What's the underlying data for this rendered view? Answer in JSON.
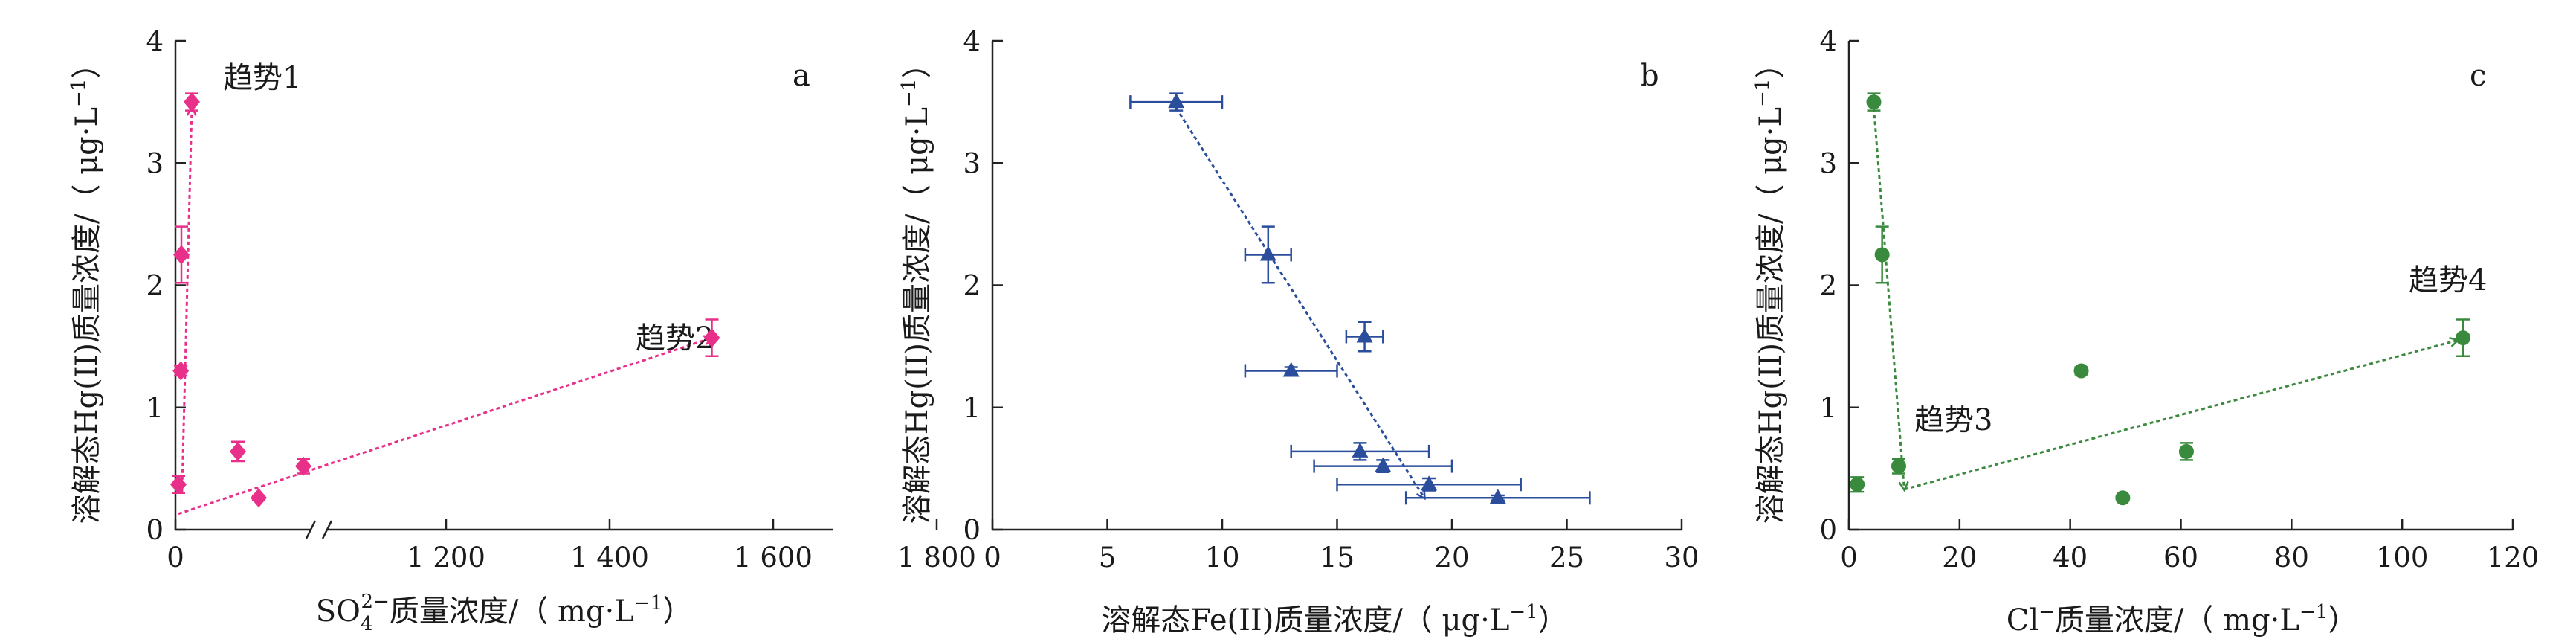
{
  "chart_data": [
    {
      "type": "scatter",
      "panel_label": "a",
      "xlabel_parts": [
        "SO",
        "4",
        "2−",
        "质量浓度/（ mg·L",
        "−1",
        "）"
      ],
      "ylabel_parts": [
        "溶解态Hg(II)质量浓度/（ μg·L",
        "−1",
        "）"
      ],
      "x_break": true,
      "ylim": [
        0,
        4
      ],
      "y_ticks": [
        "0",
        "1",
        "2",
        "3",
        "4"
      ],
      "x_ticks": [
        {
          "label": "0",
          "value": 0
        },
        {
          "label": "1 200",
          "value": 1200
        },
        {
          "label": "1 400",
          "value": 1400
        },
        {
          "label": "1 600",
          "value": 1600
        },
        {
          "label": "1 800",
          "value": 1800
        }
      ],
      "series": [
        {
          "marker": "diamond",
          "color": "#e8308a",
          "points": [
            {
              "x": 10,
              "y": 0.37,
              "yerr": 0.07
            },
            {
              "x": 18,
              "y": 1.3,
              "yerr": 0.04
            },
            {
              "x": 20,
              "y": 2.25,
              "yerr": 0.23
            },
            {
              "x": 55,
              "y": 3.5,
              "yerr": 0.07
            },
            {
              "x": 210,
              "y": 0.64,
              "yerr": 0.08
            },
            {
              "x": 280,
              "y": 0.26,
              "yerr": 0.02
            },
            {
              "x": 430,
              "y": 0.52,
              "yerr": 0.06
            },
            {
              "x": 1525,
              "y": 1.57,
              "yerr": 0.15
            }
          ]
        }
      ],
      "trend_lines": [
        {
          "label": "趋势1",
          "from": [
            22,
            0.3
          ],
          "to": [
            55,
            3.45
          ]
        },
        {
          "label": "趋势2",
          "from": [
            10,
            0.13
          ],
          "to": [
            1525,
            1.57
          ]
        }
      ]
    },
    {
      "type": "scatter",
      "panel_label": "b",
      "xlabel_parts": [
        "溶解态Fe(II)质量浓度/（ μg·L",
        "−1",
        "）"
      ],
      "ylabel_parts": [
        "溶解态Hg(II)质量浓度/（ μg·L",
        "−1",
        "）"
      ],
      "xlim": [
        0,
        30
      ],
      "ylim": [
        0,
        4
      ],
      "x_ticks": [
        "0",
        "5",
        "10",
        "15",
        "20",
        "25",
        "30"
      ],
      "y_ticks": [
        "0",
        "1",
        "2",
        "3",
        "4"
      ],
      "series": [
        {
          "marker": "triangle",
          "color": "#2a4d9c",
          "points": [
            {
              "x": 8,
              "y": 3.5,
              "xerr": 2,
              "yerr": 0.07
            },
            {
              "x": 12,
              "y": 2.25,
              "xerr": 1,
              "yerr": 0.23
            },
            {
              "x": 16.2,
              "y": 1.58,
              "xerr": 0.8,
              "yerr": 0.12
            },
            {
              "x": 13,
              "y": 1.3,
              "xerr": 2,
              "yerr": 0.03
            },
            {
              "x": 16,
              "y": 0.64,
              "xerr": 3,
              "yerr": 0.07
            },
            {
              "x": 17,
              "y": 0.52,
              "xerr": 3,
              "yerr": 0.05
            },
            {
              "x": 19,
              "y": 0.37,
              "xerr": 4,
              "yerr": 0.05
            },
            {
              "x": 22,
              "y": 0.26,
              "xerr": 4,
              "yerr": 0.02
            }
          ]
        }
      ],
      "trend_lines": [
        {
          "label": "",
          "from": [
            8,
            3.45
          ],
          "to": [
            18.8,
            0.26
          ]
        }
      ]
    },
    {
      "type": "scatter",
      "panel_label": "c",
      "xlabel_parts": [
        "Cl",
        "−",
        "质量浓度/（ mg·L",
        "−1",
        "）"
      ],
      "ylabel_parts": [
        "溶解态Hg(II)质量浓度/（ μg·L",
        "−1",
        "）"
      ],
      "xlim": [
        0,
        120
      ],
      "ylim": [
        0,
        4
      ],
      "x_ticks": [
        "0",
        "20",
        "40",
        "60",
        "80",
        "100",
        "120"
      ],
      "y_ticks": [
        "0",
        "1",
        "2",
        "3",
        "4"
      ],
      "series": [
        {
          "marker": "circle",
          "color": "#3a8a3e",
          "points": [
            {
              "x": 1.5,
              "y": 0.37,
              "yerr": 0.06
            },
            {
              "x": 4.5,
              "y": 3.5,
              "yerr": 0.07
            },
            {
              "x": 6,
              "y": 2.25,
              "yerr": 0.23
            },
            {
              "x": 9,
              "y": 0.52,
              "yerr": 0.06
            },
            {
              "x": 42,
              "y": 1.3,
              "yerr": 0.03
            },
            {
              "x": 49.5,
              "y": 0.26,
              "yerr": 0.02
            },
            {
              "x": 61,
              "y": 0.64,
              "yerr": 0.07
            },
            {
              "x": 111,
              "y": 1.57,
              "yerr": 0.15
            }
          ]
        }
      ],
      "trend_lines": [
        {
          "label": "趋势3",
          "from": [
            4.5,
            3.45
          ],
          "to": [
            10,
            0.33
          ]
        },
        {
          "label": "趋势4",
          "from": [
            10,
            0.33
          ],
          "to": [
            110,
            1.55
          ]
        }
      ]
    }
  ]
}
